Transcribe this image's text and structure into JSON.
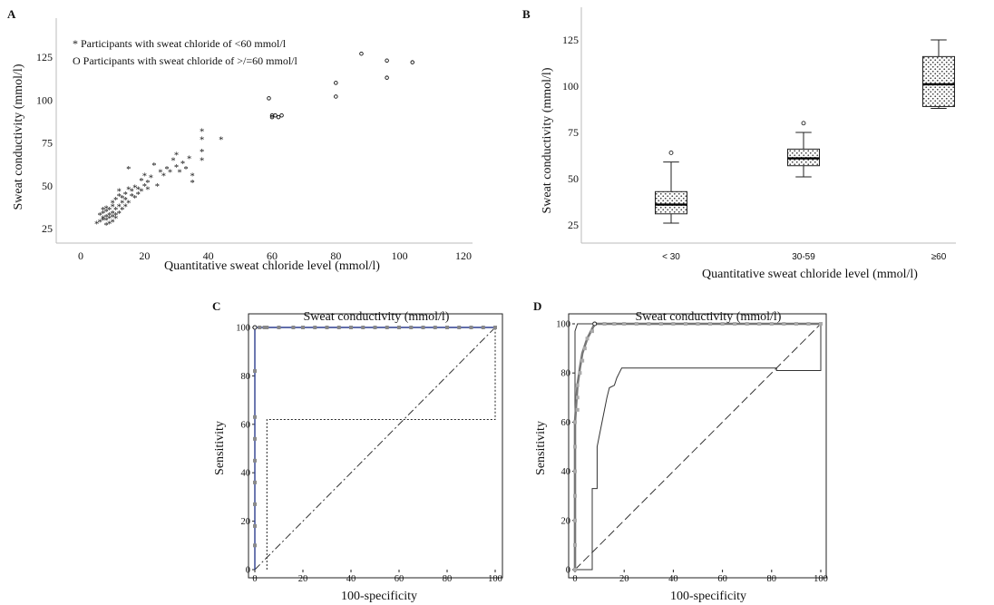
{
  "chart_data": [
    {
      "panel": "A",
      "type": "scatter",
      "xlabel": "Quantitative sweat chloride level (mmol/l)",
      "ylabel": "Sweat conductivity (mmol/l)",
      "xlim": [
        -5,
        122
      ],
      "ylim": [
        17,
        137
      ],
      "xticks": [
        0,
        20,
        40,
        60,
        80,
        100,
        120
      ],
      "yticks": [
        25,
        50,
        75,
        100,
        125
      ],
      "legend": [
        "* Participants with sweat chloride of <60 mmol/l",
        "O Participants with sweat chloride of >/=60 mmol/l"
      ],
      "series": [
        {
          "marker": "*",
          "points": [
            [
              5,
              28
            ],
            [
              6,
              29
            ],
            [
              6,
              33
            ],
            [
              7,
              30
            ],
            [
              7,
              31
            ],
            [
              7,
              34
            ],
            [
              7,
              36
            ],
            [
              8,
              27
            ],
            [
              8,
              30
            ],
            [
              8,
              32
            ],
            [
              8,
              35
            ],
            [
              8,
              37
            ],
            [
              9,
              28
            ],
            [
              9,
              31
            ],
            [
              9,
              33
            ],
            [
              9,
              36
            ],
            [
              10,
              29
            ],
            [
              10,
              32
            ],
            [
              10,
              34
            ],
            [
              10,
              38
            ],
            [
              10,
              40
            ],
            [
              11,
              31
            ],
            [
              11,
              33
            ],
            [
              11,
              36
            ],
            [
              11,
              42
            ],
            [
              12,
              34
            ],
            [
              12,
              38
            ],
            [
              12,
              44
            ],
            [
              12,
              47
            ],
            [
              13,
              36
            ],
            [
              13,
              40
            ],
            [
              13,
              43
            ],
            [
              14,
              38
            ],
            [
              14,
              42
            ],
            [
              14,
              45
            ],
            [
              15,
              40
            ],
            [
              15,
              48
            ],
            [
              15,
              60
            ],
            [
              16,
              44
            ],
            [
              16,
              47
            ],
            [
              17,
              43
            ],
            [
              17,
              49
            ],
            [
              18,
              45
            ],
            [
              18,
              48
            ],
            [
              19,
              47
            ],
            [
              19,
              53
            ],
            [
              20,
              50
            ],
            [
              20,
              56
            ],
            [
              21,
              48
            ],
            [
              21,
              52
            ],
            [
              22,
              55
            ],
            [
              23,
              62
            ],
            [
              24,
              50
            ],
            [
              25,
              58
            ],
            [
              26,
              56
            ],
            [
              27,
              60
            ],
            [
              28,
              58
            ],
            [
              29,
              65
            ],
            [
              30,
              61
            ],
            [
              30,
              68
            ],
            [
              31,
              58
            ],
            [
              32,
              63
            ],
            [
              33,
              60
            ],
            [
              34,
              66
            ],
            [
              35,
              52
            ],
            [
              35,
              56
            ],
            [
              38,
              65
            ],
            [
              38,
              70
            ],
            [
              38,
              77
            ],
            [
              38,
              82
            ],
            [
              44,
              77
            ]
          ]
        },
        {
          "marker": "o",
          "points": [
            [
              59,
              101
            ],
            [
              60,
              91
            ],
            [
              60,
              90
            ],
            [
              61,
              91
            ],
            [
              62,
              90
            ],
            [
              63,
              91
            ],
            [
              80,
              102
            ],
            [
              80,
              110
            ],
            [
              88,
              127
            ],
            [
              96,
              113
            ],
            [
              96,
              123
            ],
            [
              104,
              122
            ]
          ]
        }
      ]
    },
    {
      "panel": "B",
      "type": "box",
      "xlabel": "Quantitative sweat chloride level (mmol/l)",
      "ylabel": "Sweat conductivity (mmol/l)",
      "ylim": [
        17,
        138
      ],
      "yticks": [
        25,
        50,
        75,
        100,
        125
      ],
      "categories": [
        "< 30",
        "30-59",
        "≥60"
      ],
      "boxes": [
        {
          "whisker_low": 26,
          "q1": 31,
          "median": 36,
          "q3": 43,
          "whisker_high": 59,
          "outliers": [
            64
          ]
        },
        {
          "whisker_low": 51,
          "q1": 57,
          "median": 61,
          "q3": 66,
          "whisker_high": 75,
          "outliers": [
            80
          ]
        },
        {
          "whisker_low": 88,
          "q1": 89,
          "median": 101,
          "q3": 116,
          "whisker_high": 125,
          "outliers": []
        }
      ]
    },
    {
      "panel": "C",
      "type": "line",
      "title": "Sweat conductivity (mmol/l)",
      "xlabel": "100-specificity",
      "ylabel": "Sensitivity",
      "xlim": [
        0,
        100
      ],
      "ylim": [
        0,
        100
      ],
      "xticks": [
        0,
        20,
        40,
        60,
        80,
        100
      ],
      "yticks": [
        0,
        20,
        40,
        60,
        80,
        100
      ],
      "roc": [
        [
          0,
          0
        ],
        [
          0,
          100
        ],
        [
          100,
          100
        ]
      ],
      "roc_markers": [
        [
          0,
          10
        ],
        [
          0,
          18
        ],
        [
          0,
          27
        ],
        [
          0,
          36
        ],
        [
          0,
          45
        ],
        [
          0,
          54
        ],
        [
          0,
          63
        ],
        [
          0,
          82
        ],
        [
          0,
          100
        ],
        [
          2,
          100
        ],
        [
          4,
          100
        ],
        [
          5,
          100
        ],
        [
          10,
          100
        ],
        [
          16,
          100
        ],
        [
          20,
          100
        ],
        [
          25,
          100
        ],
        [
          30,
          100
        ],
        [
          35,
          100
        ],
        [
          40,
          100
        ],
        [
          45,
          100
        ],
        [
          50,
          100
        ],
        [
          55,
          100
        ],
        [
          60,
          100
        ],
        [
          65,
          100
        ],
        [
          70,
          100
        ],
        [
          75,
          100
        ],
        [
          80,
          100
        ],
        [
          85,
          100
        ],
        [
          90,
          100
        ],
        [
          95,
          100
        ],
        [
          100,
          100
        ]
      ],
      "diagonal": [
        [
          0,
          0
        ],
        [
          100,
          100
        ]
      ],
      "ci_band": [
        [
          5,
          0
        ],
        [
          5,
          62
        ],
        [
          100,
          62
        ],
        [
          100,
          100
        ]
      ]
    },
    {
      "panel": "D",
      "type": "line",
      "title": "Sweat conductivity (mmol/l)",
      "xlabel": "100-specificity",
      "ylabel": "Sensitivity",
      "xlim": [
        0,
        100
      ],
      "ylim": [
        0,
        100
      ],
      "xticks": [
        0,
        20,
        40,
        60,
        80,
        100
      ],
      "yticks": [
        0,
        20,
        40,
        60,
        80,
        100
      ],
      "roc": [
        [
          0,
          0
        ],
        [
          0,
          60
        ],
        [
          1,
          75
        ],
        [
          2,
          82
        ],
        [
          3,
          88
        ],
        [
          4,
          91
        ],
        [
          5,
          94
        ],
        [
          6,
          96
        ],
        [
          7,
          98
        ],
        [
          8,
          100
        ],
        [
          100,
          100
        ]
      ],
      "roc_markers": [
        [
          0,
          0
        ],
        [
          0,
          10
        ],
        [
          0,
          20
        ],
        [
          0,
          30
        ],
        [
          0,
          40
        ],
        [
          0,
          50
        ],
        [
          0,
          60
        ],
        [
          1,
          65
        ],
        [
          1,
          70
        ],
        [
          1,
          75
        ],
        [
          2,
          80
        ],
        [
          3,
          85
        ],
        [
          4,
          90
        ],
        [
          5,
          94
        ],
        [
          7,
          97
        ],
        [
          8,
          100
        ],
        [
          12,
          100
        ],
        [
          16,
          100
        ],
        [
          20,
          100
        ],
        [
          25,
          100
        ],
        [
          30,
          100
        ],
        [
          35,
          100
        ],
        [
          40,
          100
        ],
        [
          45,
          100
        ],
        [
          50,
          100
        ],
        [
          55,
          100
        ],
        [
          60,
          100
        ],
        [
          65,
          100
        ],
        [
          70,
          100
        ],
        [
          75,
          100
        ],
        [
          80,
          100
        ],
        [
          85,
          100
        ],
        [
          90,
          100
        ],
        [
          95,
          100
        ],
        [
          100,
          100
        ]
      ],
      "roc2": [
        [
          0,
          0
        ],
        [
          7,
          0
        ],
        [
          7,
          33
        ],
        [
          9,
          33
        ],
        [
          9,
          50
        ],
        [
          10,
          55
        ],
        [
          11,
          60
        ],
        [
          12,
          65
        ],
        [
          13,
          70
        ],
        [
          14,
          74
        ],
        [
          16,
          75
        ],
        [
          17,
          78
        ],
        [
          18,
          80
        ],
        [
          19,
          82
        ],
        [
          20,
          82
        ],
        [
          82,
          82
        ],
        [
          82,
          81
        ],
        [
          100,
          81
        ],
        [
          100,
          100
        ]
      ],
      "roc3": [
        [
          0,
          0
        ],
        [
          0,
          97
        ],
        [
          1,
          100
        ],
        [
          100,
          100
        ]
      ],
      "diagonal": [
        [
          0,
          0
        ],
        [
          100,
          100
        ]
      ]
    }
  ]
}
